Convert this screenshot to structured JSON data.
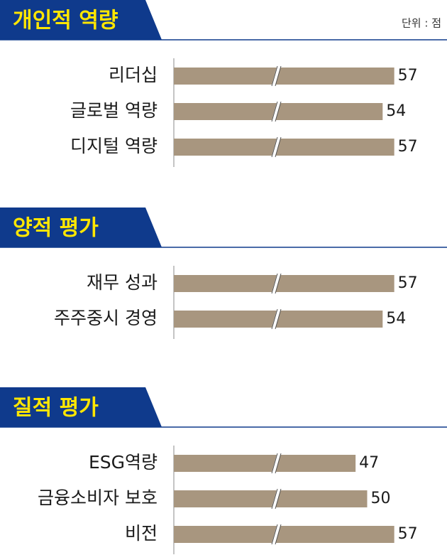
{
  "chart_data": [
    {
      "type": "bar",
      "title": "개인적 역량",
      "unit_label": "단위 : 점",
      "categories": [
        "리더십",
        "글로벌 역량",
        "디지털 역량"
      ],
      "values": [
        57,
        54,
        57
      ],
      "color": "#a8967f"
    },
    {
      "type": "bar",
      "title": "양적 평가",
      "categories": [
        "재무 성과",
        "주주중시 경영"
      ],
      "values": [
        57,
        54
      ],
      "color": "#a8967f"
    },
    {
      "type": "bar",
      "title": "질적 평가",
      "categories": [
        "ESG역량",
        "금융소비자 보호",
        "비전"
      ],
      "values": [
        47,
        50,
        57
      ],
      "color": "#a8967f"
    }
  ]
}
